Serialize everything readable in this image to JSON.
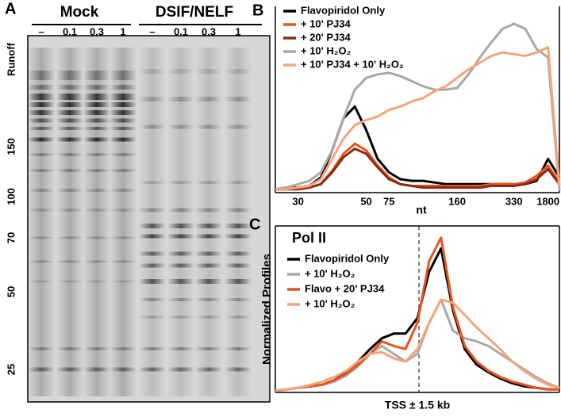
{
  "gel": {
    "panel_label": "A",
    "groups": [
      {
        "label": "Mock",
        "lanes": [
          "–",
          "0.1",
          "0.3",
          "1"
        ]
      },
      {
        "label": "DSIF/NELF",
        "lanes": [
          "–",
          "0.1",
          "0.3",
          "1"
        ]
      }
    ],
    "side_label": "Runoff",
    "markers": [
      "150",
      "100",
      "70",
      "50",
      "25"
    ]
  },
  "chart_data": [
    {
      "type": "line",
      "panel_label": "B",
      "xlabel": "nt",
      "categories": [
        null,
        null,
        "30",
        null,
        null,
        null,
        null,
        null,
        "50",
        null,
        "75",
        null,
        null,
        null,
        null,
        null,
        "160",
        null,
        null,
        null,
        null,
        "330",
        null,
        null,
        "1800",
        null
      ],
      "ylim": [
        0,
        100
      ],
      "series": [
        {
          "name": "Flavopiridol Only",
          "color": "#000000",
          "values": [
            2,
            3,
            3,
            4,
            9,
            25,
            44,
            51,
            37,
            20,
            12,
            8,
            7,
            7,
            6,
            5,
            5,
            5,
            5,
            5,
            5,
            5,
            5,
            7,
            20,
            9
          ]
        },
        {
          "name": "+ 10' PJ34",
          "color": "#e8541e",
          "values": [
            2,
            2,
            2,
            3,
            5,
            13,
            23,
            29,
            25,
            16,
            9,
            5,
            4,
            4,
            4,
            4,
            4,
            4,
            4,
            5,
            5,
            5,
            6,
            10,
            16,
            6
          ]
        },
        {
          "name": "+ 20' PJ34",
          "color": "#8b2a10",
          "values": [
            2,
            2,
            2,
            3,
            5,
            12,
            21,
            26,
            23,
            15,
            8,
            5,
            4,
            3,
            3,
            3,
            3,
            3,
            3,
            4,
            4,
            4,
            5,
            8,
            14,
            5
          ]
        },
        {
          "name": "+ 10' H₂O₂",
          "color": "#a8a8a8",
          "values": [
            2,
            3,
            5,
            7,
            12,
            25,
            44,
            61,
            68,
            70,
            71,
            69,
            66,
            63,
            61,
            61,
            62,
            70,
            80,
            89,
            97,
            100,
            97,
            85,
            80,
            1
          ]
        },
        {
          "name": "+ 10' PJ34 + 10' H₂O₂",
          "color": "#f5a47a",
          "values": [
            2,
            2,
            3,
            4,
            8,
            20,
            32,
            40,
            43,
            45,
            49,
            51,
            54,
            56,
            60,
            63,
            68,
            73,
            77,
            81,
            83,
            82,
            81,
            83,
            86,
            4
          ]
        }
      ]
    },
    {
      "type": "line",
      "panel_label": "C",
      "title": "Pol II",
      "ylabel": "Normalized Profiles",
      "xlabel": "TSS ± 1.5 kb",
      "ylim": [
        0,
        105
      ],
      "series": [
        {
          "name": "Flavopiridol Only",
          "color": "#000000",
          "values": [
            1,
            2,
            3,
            4,
            5,
            8,
            13,
            20,
            28,
            35,
            38,
            38,
            48,
            78,
            93,
            53,
            28,
            18,
            13,
            9,
            6,
            4,
            3,
            2,
            2
          ]
        },
        {
          "name": "+ 10' H₂O₂",
          "color": "#a8a8a8",
          "values": [
            1,
            2,
            3,
            4,
            5,
            7,
            11,
            17,
            25,
            30,
            25,
            20,
            25,
            45,
            60,
            40,
            35,
            33,
            30,
            25,
            20,
            15,
            10,
            6,
            3
          ]
        },
        {
          "name": "Flavo + 20' PJ34",
          "color": "#e8541e",
          "values": [
            1,
            2,
            3,
            4,
            5,
            8,
            12,
            18,
            25,
            33,
            30,
            28,
            45,
            85,
            100,
            55,
            30,
            20,
            14,
            10,
            7,
            5,
            3,
            2,
            2
          ]
        },
        {
          "name": "+ 10' H₂O₂",
          "color": "#f5a47a",
          "values": [
            1,
            2,
            3,
            5,
            7,
            10,
            14,
            20,
            25,
            26,
            22,
            20,
            28,
            45,
            60,
            58,
            50,
            42,
            35,
            28,
            20,
            14,
            9,
            5,
            3
          ]
        }
      ]
    }
  ]
}
